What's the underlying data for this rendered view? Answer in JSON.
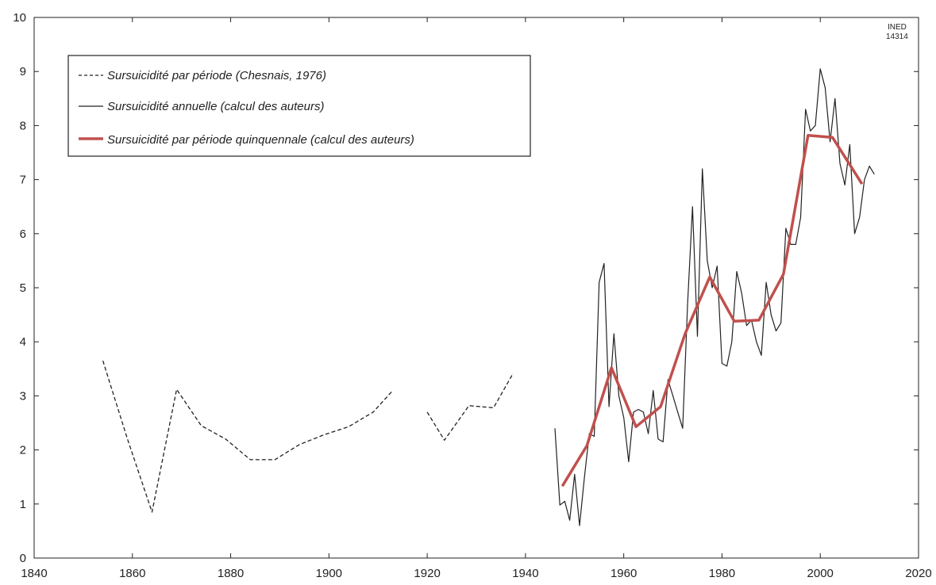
{
  "chart_data": {
    "type": "line",
    "source_code": [
      "INED",
      "14314"
    ],
    "xlim": [
      1840,
      2020
    ],
    "ylim": [
      0,
      10
    ],
    "x_ticks": [
      1840,
      1860,
      1880,
      1900,
      1920,
      1940,
      1960,
      1980,
      2000,
      2020
    ],
    "y_ticks": [
      0,
      1,
      2,
      3,
      4,
      5,
      6,
      7,
      8,
      9,
      10
    ],
    "grid": false,
    "legend_position": "top-left",
    "series": [
      {
        "name": "Sursuicidité par période (Chesnais, 1976)",
        "style": "dashed",
        "color": "#222222",
        "segments": [
          [
            [
              1854,
              3.65
            ],
            [
              1859,
              2.2
            ],
            [
              1864,
              0.85
            ],
            [
              1869,
              3.12
            ],
            [
              1874,
              2.45
            ],
            [
              1879,
              2.2
            ],
            [
              1884,
              1.82
            ],
            [
              1889,
              1.82
            ],
            [
              1894,
              2.1
            ],
            [
              1899,
              2.28
            ],
            [
              1904,
              2.43
            ],
            [
              1909,
              2.7
            ],
            [
              1913,
              3.1
            ]
          ],
          [
            [
              1920,
              2.7
            ],
            [
              1923.5,
              2.18
            ],
            [
              1928.5,
              2.82
            ],
            [
              1933.5,
              2.78
            ],
            [
              1937.5,
              3.42
            ]
          ]
        ]
      },
      {
        "name": "Sursuicidité annuelle (calcul des auteurs)",
        "style": "solid",
        "color": "#222222",
        "segments": [
          [
            [
              1946,
              2.4
            ],
            [
              1947,
              0.98
            ],
            [
              1948,
              1.05
            ],
            [
              1949,
              0.7
            ],
            [
              1950,
              1.55
            ],
            [
              1951,
              0.6
            ],
            [
              1952,
              1.5
            ],
            [
              1953,
              2.3
            ],
            [
              1954,
              2.25
            ],
            [
              1955,
              5.1
            ],
            [
              1956,
              5.45
            ],
            [
              1957,
              2.8
            ],
            [
              1958,
              4.15
            ],
            [
              1959,
              3.0
            ],
            [
              1960,
              2.6
            ],
            [
              1961,
              1.78
            ],
            [
              1962,
              2.7
            ],
            [
              1963,
              2.75
            ],
            [
              1964,
              2.7
            ],
            [
              1965,
              2.3
            ],
            [
              1966,
              3.1
            ],
            [
              1967,
              2.2
            ],
            [
              1968,
              2.15
            ],
            [
              1969,
              3.3
            ],
            [
              1970,
              3.0
            ],
            [
              1971,
              2.7
            ],
            [
              1972,
              2.4
            ],
            [
              1973,
              4.7
            ],
            [
              1974,
              6.5
            ],
            [
              1975,
              4.1
            ],
            [
              1976,
              7.2
            ],
            [
              1977,
              5.5
            ],
            [
              1978,
              5.0
            ],
            [
              1979,
              5.4
            ],
            [
              1980,
              3.6
            ],
            [
              1981,
              3.55
            ],
            [
              1982,
              4.0
            ],
            [
              1983,
              5.3
            ],
            [
              1984,
              4.9
            ],
            [
              1985,
              4.3
            ],
            [
              1986,
              4.4
            ],
            [
              1987,
              4.0
            ],
            [
              1988,
              3.75
            ],
            [
              1989,
              5.1
            ],
            [
              1990,
              4.5
            ],
            [
              1991,
              4.2
            ],
            [
              1992,
              4.35
            ],
            [
              1993,
              6.1
            ],
            [
              1994,
              5.8
            ],
            [
              1995,
              5.8
            ],
            [
              1996,
              6.3
            ],
            [
              1997,
              8.3
            ],
            [
              1998,
              7.9
            ],
            [
              1999,
              8.0
            ],
            [
              2000,
              9.05
            ],
            [
              2001,
              8.7
            ],
            [
              2002,
              7.7
            ],
            [
              2003,
              8.5
            ],
            [
              2004,
              7.3
            ],
            [
              2005,
              6.9
            ],
            [
              2006,
              7.65
            ],
            [
              2007,
              6.0
            ],
            [
              2008,
              6.3
            ],
            [
              2009,
              7.0
            ],
            [
              2010,
              7.25
            ],
            [
              2011,
              7.1
            ]
          ]
        ]
      },
      {
        "name": "Sursuicidité par période quinquennale (calcul des auteurs)",
        "style": "solid-thick",
        "color": "#c0504d",
        "segments": [
          [
            [
              1947.5,
              1.33
            ],
            [
              1952.5,
              2.08
            ],
            [
              1957.5,
              3.52
            ],
            [
              1962.5,
              2.43
            ],
            [
              1967.5,
              2.8
            ],
            [
              1972.5,
              4.15
            ],
            [
              1977.5,
              5.2
            ],
            [
              1982.5,
              4.38
            ],
            [
              1987.5,
              4.4
            ],
            [
              1992.5,
              5.25
            ],
            [
              1997.5,
              7.82
            ],
            [
              2002.5,
              7.78
            ],
            [
              2008.5,
              6.92
            ]
          ]
        ]
      }
    ]
  }
}
